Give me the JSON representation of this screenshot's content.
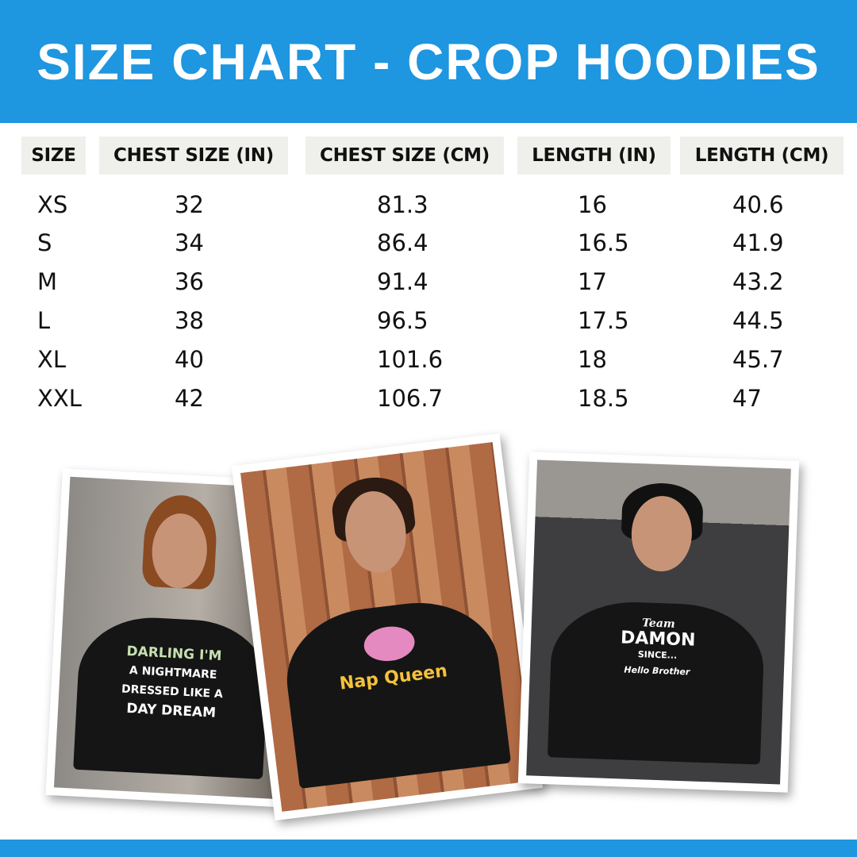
{
  "title": "SIZE CHART - CROP HOODIES",
  "colors": {
    "brand": "#1e96e0",
    "header_cell": "#efefeb"
  },
  "table": {
    "headers": [
      "SIZE",
      "CHEST SIZE (IN)",
      "CHEST SIZE (CM)",
      "LENGTH (IN)",
      "LENGTH (CM)"
    ],
    "rows": [
      [
        "XS",
        "32",
        "81.3",
        "16",
        "40.6"
      ],
      [
        "S",
        "34",
        "86.4",
        "16.5",
        "41.9"
      ],
      [
        "M",
        "36",
        "91.4",
        "17",
        "43.2"
      ],
      [
        "L",
        "38",
        "96.5",
        "17.5",
        "44.5"
      ],
      [
        "XL",
        "40",
        "101.6",
        "18",
        "45.7"
      ],
      [
        "XXL",
        "42",
        "106.7",
        "18.5",
        "47"
      ]
    ]
  },
  "photos": [
    {
      "print": [
        "DARLING I'M",
        "A NIGHTMARE",
        "DRESSED LIKE A",
        "DAY DREAM"
      ]
    },
    {
      "print": [
        "Nap Queen"
      ]
    },
    {
      "print": [
        "Team",
        "DAMON",
        "SINCE...",
        "Hello Brother"
      ]
    }
  ]
}
